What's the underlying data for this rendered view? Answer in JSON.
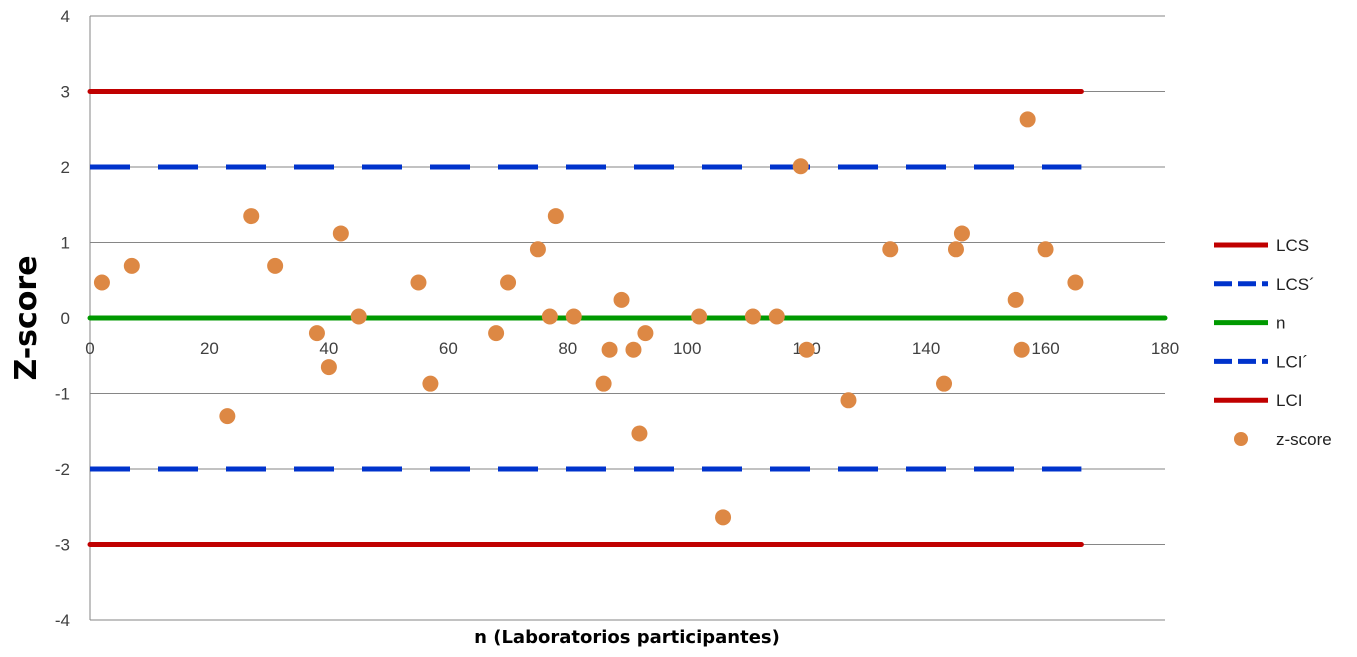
{
  "chart_data": {
    "type": "scatter",
    "xlabel": "n (Laboratorios participantes)",
    "ylabel": "Z-score",
    "xlim": [
      0,
      180
    ],
    "ylim": [
      -4,
      4
    ],
    "x_ticks": [
      0,
      20,
      40,
      60,
      80,
      100,
      120,
      140,
      160,
      180
    ],
    "y_ticks": [
      -4,
      -3,
      -2,
      -1,
      0,
      1,
      2,
      3,
      4
    ],
    "grid": "horizontal",
    "legend_position": "right",
    "lines": [
      {
        "name": "LCS",
        "y": 3,
        "x": [
          0,
          166
        ],
        "color": "#c00000",
        "style": "solid"
      },
      {
        "name": "LCS´",
        "y": 2,
        "x": [
          0,
          166
        ],
        "color": "#0033cc",
        "style": "dashed"
      },
      {
        "name": "n",
        "y": 0,
        "x": [
          0,
          180
        ],
        "color": "#009900",
        "style": "solid"
      },
      {
        "name": "LCI´",
        "y": -2,
        "x": [
          0,
          166
        ],
        "color": "#0033cc",
        "style": "dashed"
      },
      {
        "name": "LCI",
        "y": -3,
        "x": [
          0,
          166
        ],
        "color": "#c00000",
        "style": "solid"
      }
    ],
    "series": [
      {
        "name": "z-score",
        "color": "#dd8844",
        "points": [
          [
            2,
            0.47
          ],
          [
            7,
            0.69
          ],
          [
            23,
            -1.3
          ],
          [
            27,
            1.35
          ],
          [
            31,
            0.69
          ],
          [
            38,
            -0.2
          ],
          [
            40,
            -0.65
          ],
          [
            42,
            1.12
          ],
          [
            45,
            0.02
          ],
          [
            55,
            0.47
          ],
          [
            57,
            -0.87
          ],
          [
            68,
            -0.2
          ],
          [
            70,
            0.47
          ],
          [
            75,
            0.91
          ],
          [
            77,
            0.02
          ],
          [
            78,
            1.35
          ],
          [
            81,
            0.02
          ],
          [
            86,
            -0.87
          ],
          [
            87,
            -0.42
          ],
          [
            89,
            0.24
          ],
          [
            91,
            -0.42
          ],
          [
            92,
            -1.53
          ],
          [
            93,
            -0.2
          ],
          [
            102,
            0.02
          ],
          [
            106,
            -2.64
          ],
          [
            111,
            0.02
          ],
          [
            115,
            0.02
          ],
          [
            119,
            2.01
          ],
          [
            120,
            -0.42
          ],
          [
            127,
            -1.09
          ],
          [
            134,
            0.91
          ],
          [
            143,
            -0.87
          ],
          [
            145,
            0.91
          ],
          [
            146,
            1.12
          ],
          [
            155,
            0.24
          ],
          [
            156,
            -0.42
          ],
          [
            157,
            2.63
          ],
          [
            160,
            0.91
          ],
          [
            165,
            0.47
          ]
        ]
      }
    ]
  }
}
